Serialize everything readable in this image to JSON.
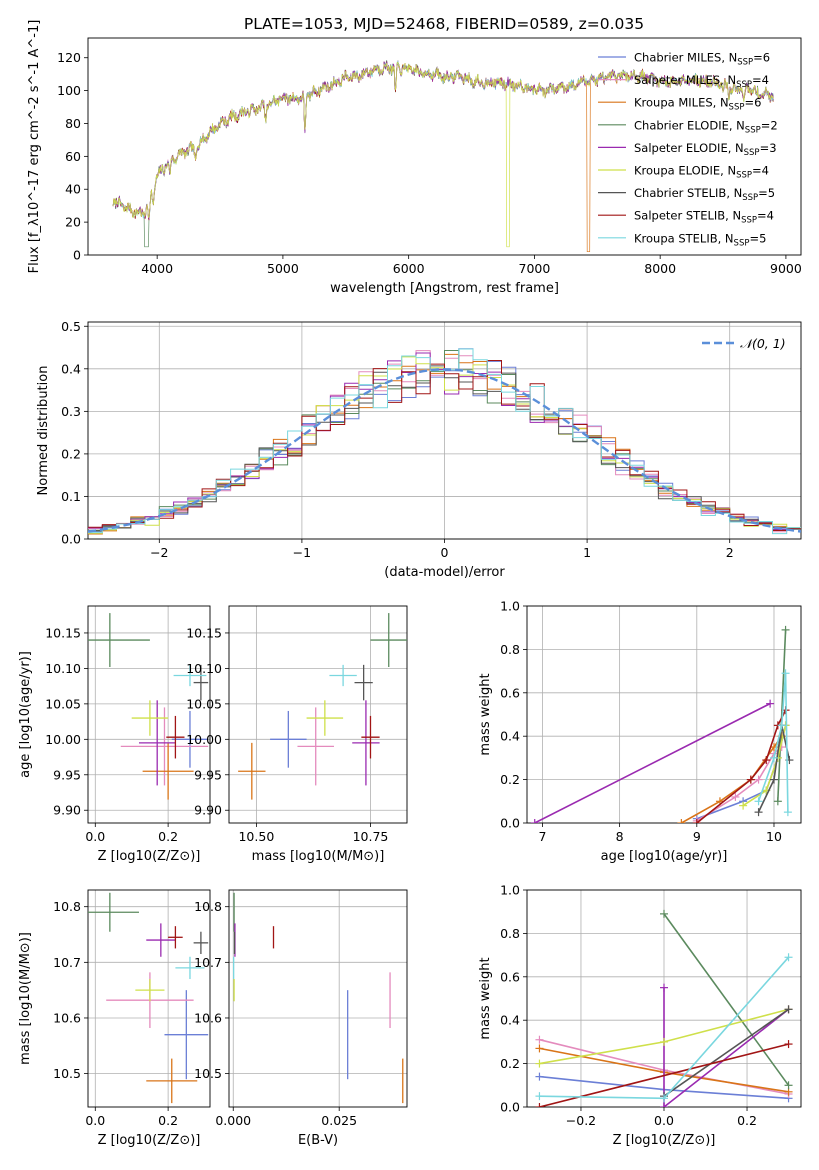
{
  "figure_title": "PLATE=1053, MJD=52468, FIBERID=0589, z=0.035",
  "colors": [
    "#6b7fd6",
    "#e48bbd",
    "#d97418",
    "#5b8a5e",
    "#9a2ab0",
    "#cfe04a",
    "#555555",
    "#a11515",
    "#7ad7df"
  ],
  "chart_data": [
    {
      "id": "spectrum",
      "type": "line",
      "xlabel": "wavelength [Angstrom, rest frame]",
      "ylabel": "Flux [f_λ10^-17 erg cm^-2 s^-1 A^-1]",
      "xlim": [
        3450,
        9120
      ],
      "ylim": [
        0,
        132
      ],
      "xticks": [
        4000,
        5000,
        6000,
        7000,
        8000,
        9000
      ],
      "yticks": [
        0,
        20,
        40,
        60,
        80,
        100,
        120
      ],
      "grid": false,
      "legend": "top-right",
      "series": [
        {
          "name": "Chabrier MILES, N",
          "sub": "SSP",
          "suffix": "=6"
        },
        {
          "name": "Salpeter MILES, N",
          "sub": "SSP",
          "suffix": "=4"
        },
        {
          "name": "Kroupa MILES, N",
          "sub": "SSP",
          "suffix": "=6"
        },
        {
          "name": "Chabrier ELODIE, N",
          "sub": "SSP",
          "suffix": "=2"
        },
        {
          "name": "Salpeter ELODIE, N",
          "sub": "SSP",
          "suffix": "=3"
        },
        {
          "name": "Kroupa ELODIE, N",
          "sub": "SSP",
          "suffix": "=4"
        },
        {
          "name": "Chabrier STELIB, N",
          "sub": "SSP",
          "suffix": "=5"
        },
        {
          "name": "Salpeter STELIB, N",
          "sub": "SSP",
          "suffix": "=4"
        },
        {
          "name": "Kroupa STELIB, N",
          "sub": "SSP",
          "suffix": "=5"
        }
      ],
      "continuum": [
        [
          3650,
          33
        ],
        [
          3800,
          27
        ],
        [
          3900,
          25
        ],
        [
          4000,
          48
        ],
        [
          4100,
          57
        ],
        [
          4200,
          62
        ],
        [
          4300,
          65
        ],
        [
          4400,
          73
        ],
        [
          4500,
          80
        ],
        [
          4600,
          84
        ],
        [
          4700,
          87
        ],
        [
          4800,
          89
        ],
        [
          4900,
          92
        ],
        [
          5000,
          96
        ],
        [
          5100,
          95
        ],
        [
          5200,
          97
        ],
        [
          5300,
          101
        ],
        [
          5400,
          104
        ],
        [
          5500,
          108
        ],
        [
          5600,
          109
        ],
        [
          5700,
          112
        ],
        [
          5800,
          114
        ],
        [
          5900,
          114
        ],
        [
          6000,
          113
        ],
        [
          6100,
          111
        ],
        [
          6200,
          110
        ],
        [
          6300,
          108
        ],
        [
          6400,
          109
        ],
        [
          6500,
          106
        ],
        [
          6600,
          105
        ],
        [
          6700,
          105
        ],
        [
          6800,
          104
        ],
        [
          6900,
          103
        ],
        [
          7000,
          101
        ],
        [
          7100,
          100
        ],
        [
          7200,
          102
        ],
        [
          7300,
          103
        ],
        [
          7400,
          106
        ],
        [
          7500,
          107
        ],
        [
          7600,
          108
        ],
        [
          7700,
          109
        ],
        [
          7800,
          109
        ],
        [
          7900,
          108
        ],
        [
          8000,
          106
        ],
        [
          8100,
          105
        ],
        [
          8200,
          107
        ],
        [
          8300,
          106
        ],
        [
          8400,
          105
        ],
        [
          8500,
          104
        ],
        [
          8600,
          101
        ],
        [
          8700,
          101
        ],
        [
          8800,
          98
        ],
        [
          8900,
          97
        ]
      ],
      "absorption_dips": [
        [
          3935,
          12
        ],
        [
          3970,
          10
        ],
        [
          4102,
          8
        ],
        [
          4305,
          7
        ],
        [
          4862,
          9
        ],
        [
          5175,
          22
        ],
        [
          5895,
          16
        ],
        [
          6563,
          5
        ],
        [
          8500,
          6
        ],
        [
          8545,
          7
        ],
        [
          8665,
          6
        ]
      ],
      "dropouts": [
        [
          3900,
          3930,
          5
        ],
        [
          6780,
          6800,
          5
        ],
        [
          7420,
          7440,
          2
        ]
      ]
    },
    {
      "id": "residuals",
      "type": "histogram",
      "xlabel": "(data-model)/error",
      "ylabel": "Normed distribution",
      "xlim": [
        -2.5,
        2.5
      ],
      "ylim": [
        0,
        0.51
      ],
      "xticks": [
        -2,
        -1,
        0,
        1,
        2
      ],
      "yticks": [
        0.0,
        0.1,
        0.2,
        0.3,
        0.4,
        0.5
      ],
      "grid": true,
      "legend": "top-right",
      "reference_curve": {
        "name": "N(0,1)",
        "mu": 0,
        "sigma": 1
      },
      "bin_width": 0.1
    },
    {
      "id": "z-age",
      "type": "scatter-errorbar",
      "xlabel": "Z [log10(Z/Z⊙)]",
      "ylabel": "age  [log10(age/yr)]",
      "xlim": [
        -0.02,
        0.315
      ],
      "ylim": [
        9.882,
        10.188
      ],
      "xticks": [
        0.0,
        0.2
      ],
      "yticks": [
        9.9,
        9.95,
        10.0,
        10.05,
        10.1,
        10.15
      ],
      "grid": true,
      "points": [
        {
          "x": 0.26,
          "y": 10.0,
          "xerr": 0.05,
          "yerr": 0.04
        },
        {
          "x": 0.19,
          "y": 9.99,
          "xerr": 0.12,
          "yerr": 0.055
        },
        {
          "x": 0.2,
          "y": 9.955,
          "xerr": 0.07,
          "yerr": 0.04
        },
        {
          "x": 0.04,
          "y": 10.14,
          "xerr": 0.11,
          "yerr": 0.038
        },
        {
          "x": 0.17,
          "y": 9.995,
          "xerr": 0.05,
          "yerr": 0.06
        },
        {
          "x": 0.15,
          "y": 10.03,
          "xerr": 0.05,
          "yerr": 0.025
        },
        {
          "x": 0.29,
          "y": 10.08,
          "xerr": 0.02,
          "yerr": 0.025
        },
        {
          "x": 0.22,
          "y": 10.003,
          "xerr": 0.025,
          "yerr": 0.03
        },
        {
          "x": 0.26,
          "y": 10.09,
          "xerr": 0.045,
          "yerr": 0.015
        }
      ]
    },
    {
      "id": "mass-age",
      "type": "scatter-errorbar",
      "xlabel": "mass [log10(M/M⊙)]",
      "ylabel": "",
      "xlim": [
        10.44,
        10.83
      ],
      "ylim": [
        9.882,
        10.188
      ],
      "xticks": [
        10.5,
        10.75
      ],
      "yticks": [
        9.9,
        9.95,
        10.0,
        10.05,
        10.1,
        10.15
      ],
      "grid": true,
      "points": [
        {
          "x": 10.57,
          "y": 10.0,
          "xerr": 0.04,
          "yerr": 0.04
        },
        {
          "x": 10.63,
          "y": 9.99,
          "xerr": 0.04,
          "yerr": 0.055
        },
        {
          "x": 10.49,
          "y": 9.955,
          "xerr": 0.03,
          "yerr": 0.04
        },
        {
          "x": 10.79,
          "y": 10.14,
          "xerr": 0.04,
          "yerr": 0.038
        },
        {
          "x": 10.74,
          "y": 9.995,
          "xerr": 0.03,
          "yerr": 0.06
        },
        {
          "x": 10.65,
          "y": 10.03,
          "xerr": 0.04,
          "yerr": 0.025
        },
        {
          "x": 10.735,
          "y": 10.08,
          "xerr": 0.02,
          "yerr": 0.025
        },
        {
          "x": 10.75,
          "y": 10.003,
          "xerr": 0.02,
          "yerr": 0.03
        },
        {
          "x": 10.69,
          "y": 10.09,
          "xerr": 0.03,
          "yerr": 0.015
        }
      ]
    },
    {
      "id": "age-weight",
      "type": "line",
      "xlabel": "age  [log10(age/yr)]",
      "ylabel": "mass weight",
      "xlim": [
        6.8,
        10.35
      ],
      "ylim": [
        0,
        1.0
      ],
      "xticks": [
        7,
        8,
        9,
        10
      ],
      "yticks": [
        0.0,
        0.2,
        0.4,
        0.6,
        0.8,
        1.0
      ],
      "grid": true,
      "series": [
        {
          "values": [
            [
              9.0,
              0.02
            ],
            [
              9.6,
              0.1
            ],
            [
              9.9,
              0.15
            ],
            [
              10.05,
              0.3
            ],
            [
              10.15,
              0.45
            ]
          ]
        },
        {
          "values": [
            [
              9.0,
              0.01
            ],
            [
              9.5,
              0.12
            ],
            [
              9.8,
              0.2
            ],
            [
              10.0,
              0.32
            ],
            [
              10.1,
              0.35
            ]
          ]
        },
        {
          "values": [
            [
              8.8,
              0.0
            ],
            [
              9.3,
              0.1
            ],
            [
              9.7,
              0.2
            ],
            [
              10.0,
              0.35
            ],
            [
              10.1,
              0.4
            ]
          ]
        },
        {
          "values": [
            [
              10.05,
              0.1
            ],
            [
              10.15,
              0.89
            ]
          ]
        },
        {
          "values": [
            [
              6.9,
              0.0
            ],
            [
              9.95,
              0.55
            ]
          ]
        },
        {
          "values": [
            [
              9.6,
              0.08
            ],
            [
              9.9,
              0.15
            ],
            [
              10.05,
              0.3
            ],
            [
              10.15,
              0.45
            ]
          ]
        },
        {
          "values": [
            [
              9.8,
              0.05
            ],
            [
              10.0,
              0.2
            ],
            [
              10.1,
              0.45
            ],
            [
              10.2,
              0.29
            ]
          ]
        },
        {
          "values": [
            [
              9.0,
              0.0
            ],
            [
              9.7,
              0.2
            ],
            [
              9.9,
              0.29
            ],
            [
              10.05,
              0.45
            ],
            [
              10.15,
              0.52
            ]
          ]
        },
        {
          "values": [
            [
              9.8,
              0.1
            ],
            [
              10.0,
              0.3
            ],
            [
              10.1,
              0.45
            ],
            [
              10.15,
              0.69
            ],
            [
              10.18,
              0.05
            ]
          ]
        }
      ]
    },
    {
      "id": "z-mass",
      "type": "scatter-errorbar",
      "xlabel": "Z [log10(Z/Z⊙)]",
      "ylabel": "mass [log10(M/M⊙)]",
      "xlim": [
        -0.02,
        0.315
      ],
      "ylim": [
        10.44,
        10.83
      ],
      "xticks": [
        0.0,
        0.2
      ],
      "yticks": [
        10.5,
        10.6,
        10.7,
        10.8
      ],
      "grid": true,
      "points": [
        {
          "x": 0.25,
          "y": 10.57,
          "xerr": 0.06,
          "yerr": 0.08
        },
        {
          "x": 0.15,
          "y": 10.632,
          "xerr": 0.12,
          "yerr": 0.05
        },
        {
          "x": 0.21,
          "y": 10.487,
          "xerr": 0.07,
          "yerr": 0.04
        },
        {
          "x": 0.04,
          "y": 10.79,
          "xerr": 0.08,
          "yerr": 0.035
        },
        {
          "x": 0.18,
          "y": 10.74,
          "xerr": 0.04,
          "yerr": 0.03
        },
        {
          "x": 0.15,
          "y": 10.65,
          "xerr": 0.04,
          "yerr": 0.02
        },
        {
          "x": 0.29,
          "y": 10.735,
          "xerr": 0.02,
          "yerr": 0.02
        },
        {
          "x": 0.22,
          "y": 10.745,
          "xerr": 0.02,
          "yerr": 0.02
        },
        {
          "x": 0.26,
          "y": 10.69,
          "xerr": 0.04,
          "yerr": 0.02
        }
      ]
    },
    {
      "id": "ebv-mass",
      "type": "scatter-errorbar",
      "xlabel": "E(B-V)",
      "ylabel": "",
      "xlim": [
        -0.001,
        0.041
      ],
      "ylim": [
        10.44,
        10.83
      ],
      "xticks": [
        0.0,
        0.025
      ],
      "yticks": [
        10.5,
        10.6,
        10.7,
        10.8
      ],
      "grid": true,
      "points": [
        {
          "x": 0.027,
          "y": 10.57,
          "xerr": 0,
          "yerr": 0.08
        },
        {
          "x": 0.037,
          "y": 10.632,
          "xerr": 0,
          "yerr": 0.05
        },
        {
          "x": 0.04,
          "y": 10.487,
          "xerr": 0,
          "yerr": 0.04
        },
        {
          "x": 0.0002,
          "y": 10.79,
          "xerr": 0,
          "yerr": 0.035
        },
        {
          "x": 0.0004,
          "y": 10.74,
          "xerr": 0,
          "yerr": 0.03
        },
        {
          "x": 0.0002,
          "y": 10.65,
          "xerr": 0,
          "yerr": 0.02
        },
        {
          "x": 0.0003,
          "y": 10.735,
          "xerr": 0,
          "yerr": 0.02
        },
        {
          "x": 0.0095,
          "y": 10.745,
          "xerr": 0,
          "yerr": 0.02
        },
        {
          "x": 0.0001,
          "y": 10.69,
          "xerr": 0,
          "yerr": 0.02
        }
      ]
    },
    {
      "id": "z-weight",
      "type": "line",
      "xlabel": "Z [log10(Z/Z⊙)]",
      "ylabel": "mass weight",
      "xlim": [
        -0.33,
        0.33
      ],
      "ylim": [
        0,
        1.0
      ],
      "xticks": [
        -0.2,
        0.0,
        0.2
      ],
      "yticks": [
        0.0,
        0.2,
        0.4,
        0.6,
        0.8,
        1.0
      ],
      "grid": true,
      "series": [
        {
          "values": [
            [
              -0.3,
              0.14
            ],
            [
              0.0,
              0.08
            ],
            [
              0.3,
              0.04
            ]
          ]
        },
        {
          "values": [
            [
              -0.3,
              0.31
            ],
            [
              0.0,
              0.17
            ],
            [
              0.3,
              0.06
            ]
          ]
        },
        {
          "values": [
            [
              -0.3,
              0.27
            ],
            [
              0.0,
              0.16
            ],
            [
              0.3,
              0.07
            ]
          ]
        },
        {
          "values": [
            [
              0.0,
              0.89
            ],
            [
              0.3,
              0.1
            ]
          ]
        },
        {
          "values": [
            [
              0.0,
              0.55
            ],
            [
              0.0,
              0.0
            ],
            [
              0.3,
              0.45
            ]
          ]
        },
        {
          "values": [
            [
              -0.3,
              0.2
            ],
            [
              0.0,
              0.3
            ],
            [
              0.3,
              0.45
            ]
          ]
        },
        {
          "values": [
            [
              0.0,
              0.05
            ],
            [
              0.3,
              0.45
            ]
          ]
        },
        {
          "values": [
            [
              -0.3,
              0.0
            ],
            [
              0.3,
              0.29
            ]
          ]
        },
        {
          "values": [
            [
              -0.3,
              0.05
            ],
            [
              0.0,
              0.04
            ],
            [
              0.3,
              0.69
            ]
          ]
        }
      ]
    }
  ]
}
